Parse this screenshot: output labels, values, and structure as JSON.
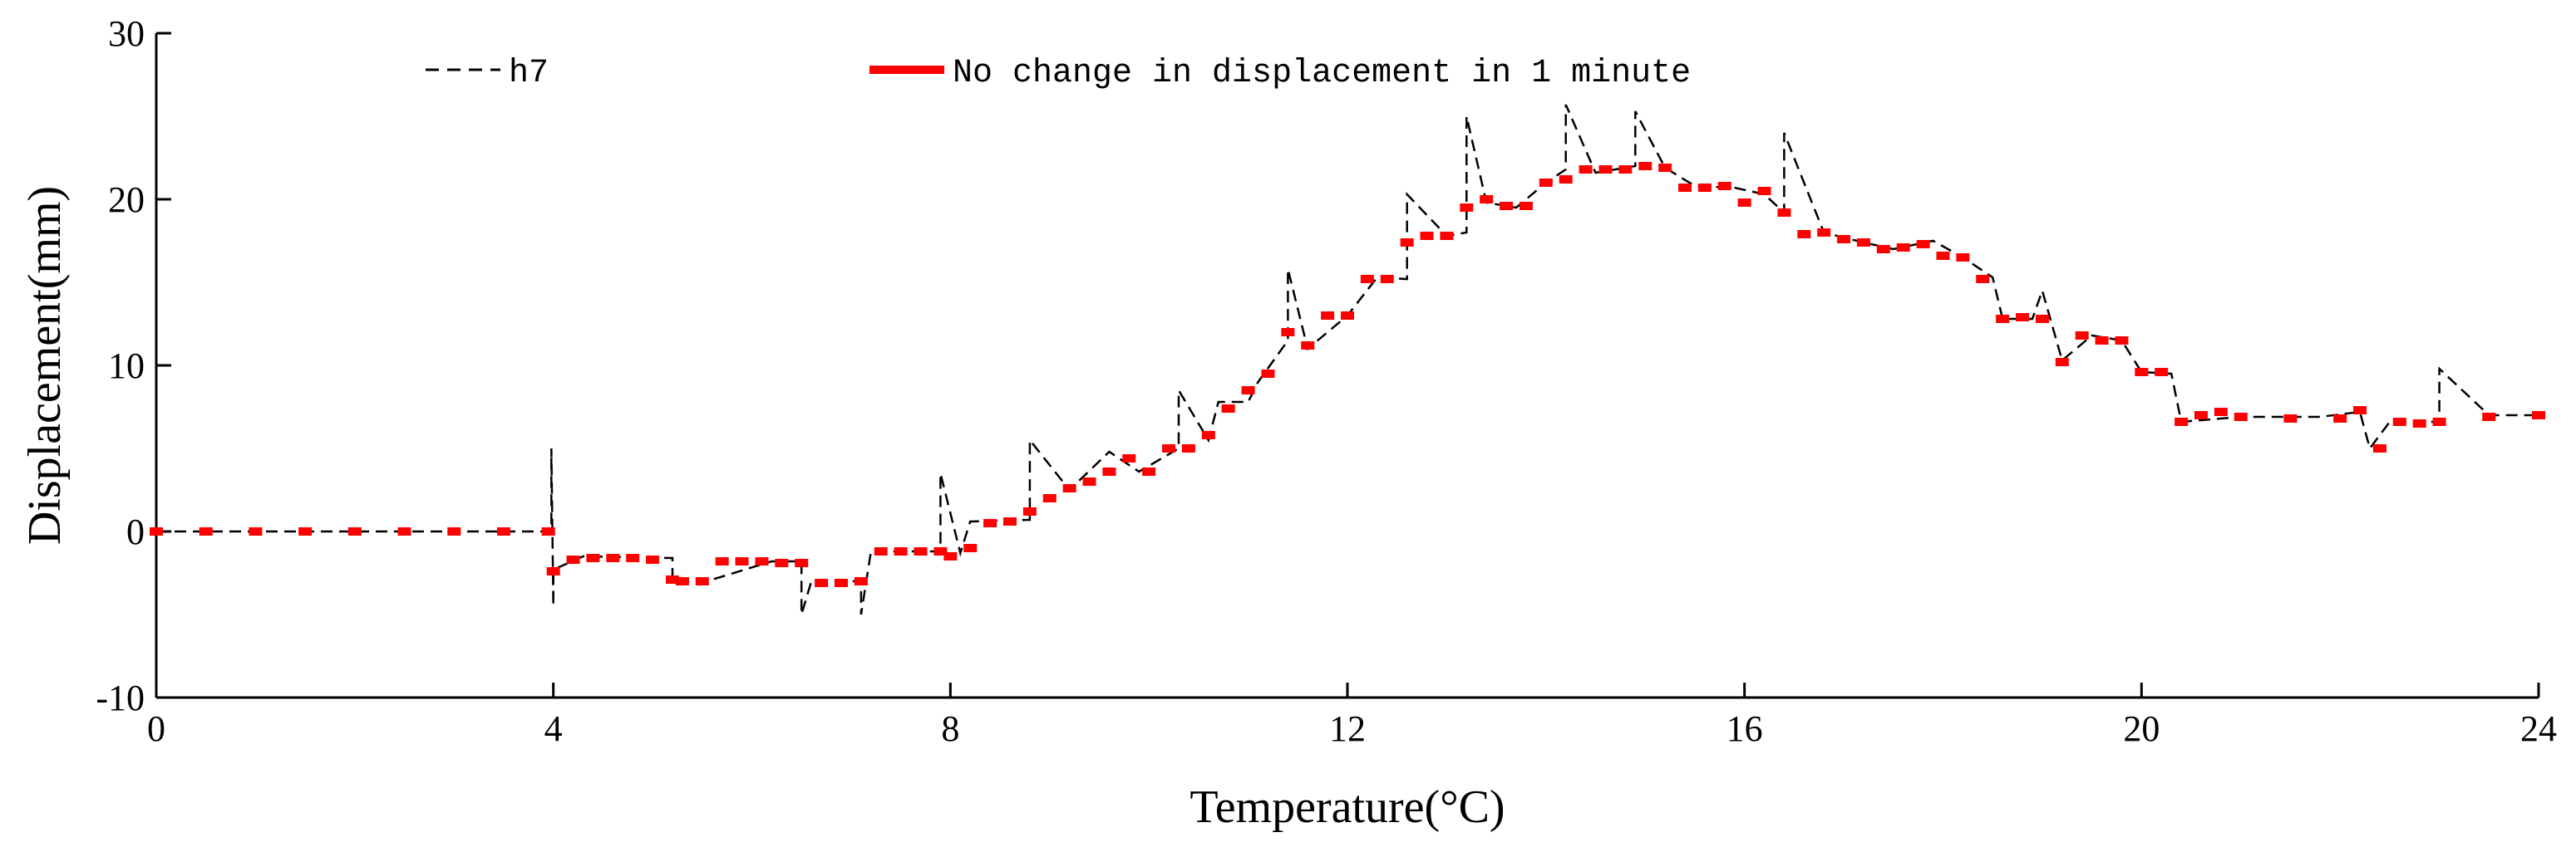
{
  "chart_data": {
    "type": "line",
    "title": "",
    "xlabel": "Temperature(°C)",
    "ylabel": "Displacement(mm)",
    "xlim": [
      0,
      24
    ],
    "ylim": [
      -10,
      30
    ],
    "xticks": [
      0,
      4,
      8,
      12,
      16,
      20,
      24
    ],
    "yticks": [
      -10,
      0,
      10,
      20,
      30
    ],
    "grid": false,
    "legend_position": "top",
    "colors": {
      "h7": "#000000",
      "stable": "#ff0000"
    },
    "series": [
      {
        "name": "h7",
        "style": "dashed",
        "x": [
          0,
          3.98,
          3.98,
          4.0,
          4.0,
          4.3,
          5.2,
          5.2,
          5.6,
          6.2,
          6.5,
          6.5,
          6.6,
          7.1,
          7.1,
          7.2,
          7.9,
          7.9,
          8.1,
          8.2,
          8.8,
          8.8,
          9.2,
          9.6,
          9.9,
          10.3,
          10.3,
          10.6,
          10.7,
          11.0,
          11.1,
          11.4,
          11.4,
          11.6,
          12.0,
          12.3,
          12.6,
          12.6,
          13.0,
          13.2,
          13.2,
          13.4,
          13.7,
          14.0,
          14.2,
          14.2,
          14.5,
          14.9,
          14.9,
          15.2,
          15.5,
          15.9,
          16.2,
          16.4,
          16.4,
          16.8,
          17.2,
          17.5,
          17.9,
          18.2,
          18.5,
          18.6,
          18.9,
          19.0,
          19.2,
          19.5,
          19.8,
          20.0,
          20.3,
          20.4,
          21.0,
          21.8,
          22.2,
          22.3,
          22.5,
          23.0,
          23.0,
          23.5,
          24.0
        ],
        "y": [
          0,
          0,
          5,
          -4.5,
          -2.3,
          -1.5,
          -1.6,
          -3,
          -2.9,
          -1.8,
          -1.8,
          -5,
          -3,
          -3,
          -5,
          -1.2,
          -1.2,
          3.5,
          -1.3,
          0.6,
          0.7,
          5.5,
          2.5,
          4.8,
          3.6,
          5.0,
          8.5,
          5.5,
          7.8,
          7.8,
          9.0,
          11.5,
          15.8,
          11.0,
          13.0,
          15.3,
          15.2,
          20.3,
          17.8,
          18.0,
          25,
          19.8,
          19.5,
          21.0,
          21.8,
          25.7,
          21.6,
          22.0,
          25.3,
          21.9,
          20.8,
          20.7,
          20.3,
          19.2,
          24,
          18.0,
          17.4,
          17.0,
          17.5,
          16.5,
          15.3,
          12.8,
          12.8,
          14.5,
          10.3,
          11.8,
          11.5,
          9.6,
          9.5,
          6.6,
          6.9,
          6.9,
          7.2,
          5.0,
          6.6,
          6.6,
          9.8,
          7.0,
          7.0
        ]
      },
      {
        "name": "No change in displacement in 1 minute",
        "style": "markers",
        "x": [
          0,
          0.5,
          1.0,
          1.5,
          2.0,
          2.5,
          3.0,
          3.5,
          3.95,
          4.0,
          4.2,
          4.4,
          4.6,
          4.8,
          5.0,
          5.2,
          5.3,
          5.5,
          5.7,
          5.9,
          6.1,
          6.3,
          6.5,
          6.7,
          6.9,
          7.1,
          7.3,
          7.5,
          7.7,
          7.9,
          8.0,
          8.2,
          8.4,
          8.6,
          8.8,
          9.0,
          9.2,
          9.4,
          9.6,
          9.8,
          10.0,
          10.2,
          10.4,
          10.6,
          10.8,
          11.0,
          11.2,
          11.4,
          11.6,
          11.8,
          12.0,
          12.2,
          12.4,
          12.6,
          12.8,
          13.0,
          13.2,
          13.4,
          13.6,
          13.8,
          14.0,
          14.2,
          14.4,
          14.6,
          14.8,
          15.0,
          15.2,
          15.4,
          15.6,
          15.8,
          16.0,
          16.2,
          16.4,
          16.6,
          16.8,
          17.0,
          17.2,
          17.4,
          17.6,
          17.8,
          18.0,
          18.2,
          18.4,
          18.6,
          18.8,
          19.0,
          19.2,
          19.4,
          19.6,
          19.8,
          20.0,
          20.2,
          20.4,
          20.6,
          20.8,
          21.0,
          21.5,
          22.0,
          22.2,
          22.4,
          22.6,
          22.8,
          23.0,
          23.5,
          24.0
        ],
        "y": [
          0,
          0,
          0,
          0,
          0,
          0,
          0,
          0,
          0,
          -2.4,
          -1.7,
          -1.6,
          -1.6,
          -1.6,
          -1.7,
          -2.9,
          -3.0,
          -3.0,
          -1.8,
          -1.8,
          -1.8,
          -1.9,
          -1.9,
          -3.1,
          -3.1,
          -3.0,
          -1.2,
          -1.2,
          -1.2,
          -1.2,
          -1.5,
          -1.0,
          0.5,
          0.6,
          1.2,
          2.0,
          2.6,
          3.0,
          3.6,
          4.4,
          3.6,
          5.0,
          5.0,
          5.8,
          7.4,
          8.5,
          9.5,
          12.0,
          11.2,
          13.0,
          13.0,
          15.2,
          15.2,
          17.4,
          17.8,
          17.8,
          19.5,
          20.0,
          19.6,
          19.6,
          21.0,
          21.2,
          21.8,
          21.8,
          21.8,
          22.0,
          21.9,
          20.7,
          20.7,
          20.8,
          19.8,
          20.5,
          19.2,
          17.9,
          18.0,
          17.6,
          17.4,
          17.0,
          17.1,
          17.3,
          16.6,
          16.5,
          15.2,
          12.8,
          12.9,
          12.8,
          10.2,
          11.8,
          11.5,
          11.5,
          9.6,
          9.6,
          6.6,
          7.0,
          7.2,
          6.9,
          6.8,
          6.8,
          7.3,
          5.0,
          6.6,
          6.5,
          6.6,
          6.9,
          7.0
        ]
      }
    ]
  }
}
